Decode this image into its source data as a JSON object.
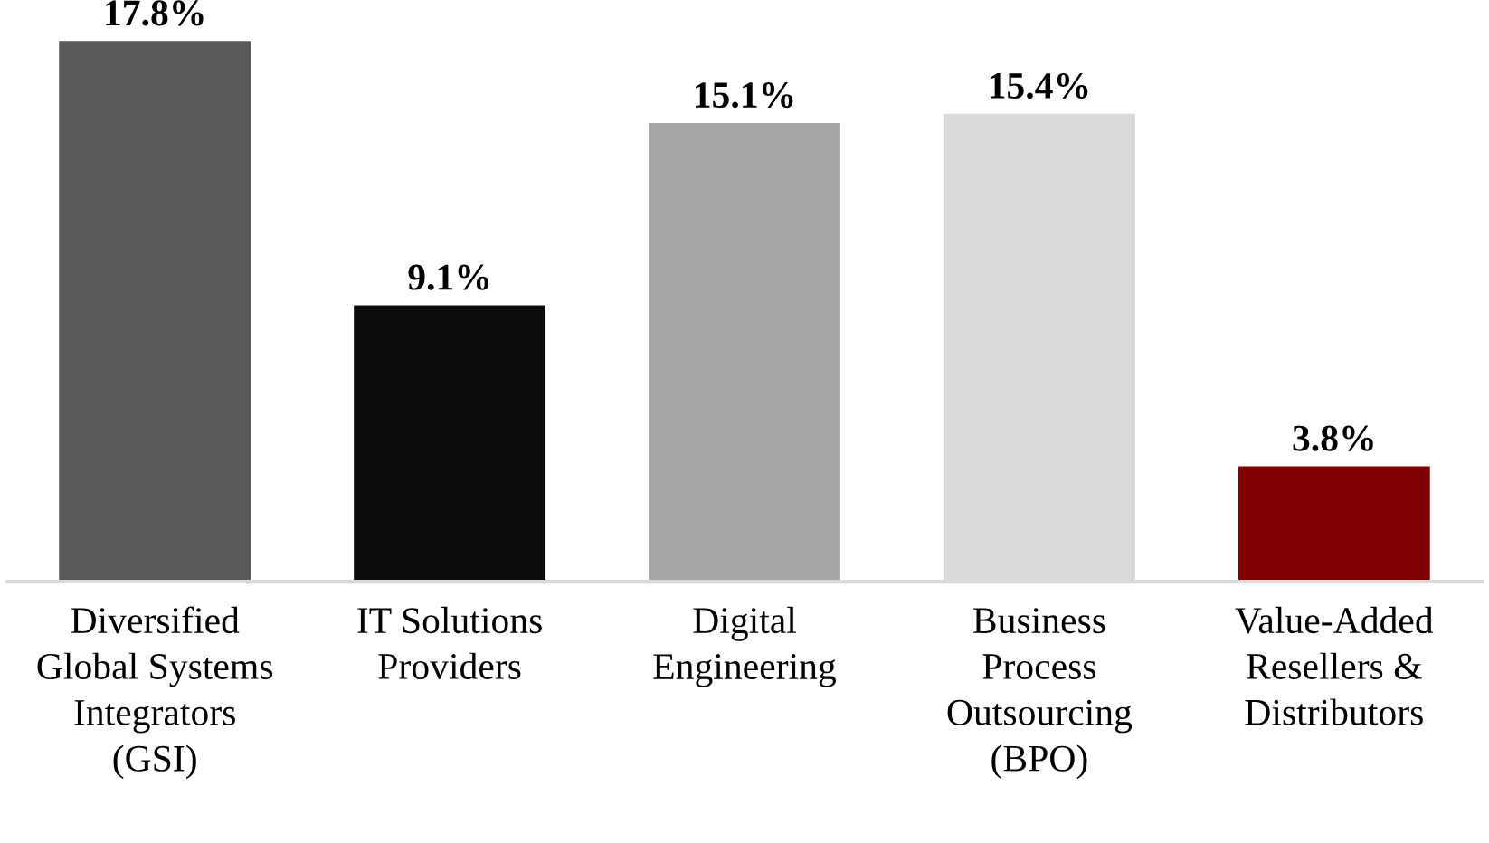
{
  "chart_data": {
    "type": "bar",
    "categories": [
      "Diversified\nGlobal Systems\nIntegrators\n(GSI)",
      "IT Solutions\nProviders",
      "Digital\nEngineering",
      "Business\nProcess\nOutsourcing\n(BPO)",
      "Value-Added\nResellers &\nDistributors"
    ],
    "values": [
      17.8,
      9.1,
      15.1,
      15.4,
      3.8
    ],
    "colors": [
      "#595959",
      "#0d0d0d",
      "#a6a6a6",
      "#d9d9d9",
      "#7f0000"
    ],
    "value_labels": [
      "17.8%",
      "9.1%",
      "15.1%",
      "15.4%",
      "3.8%"
    ],
    "grid": false,
    "legend": false,
    "tick_labels": "x"
  }
}
